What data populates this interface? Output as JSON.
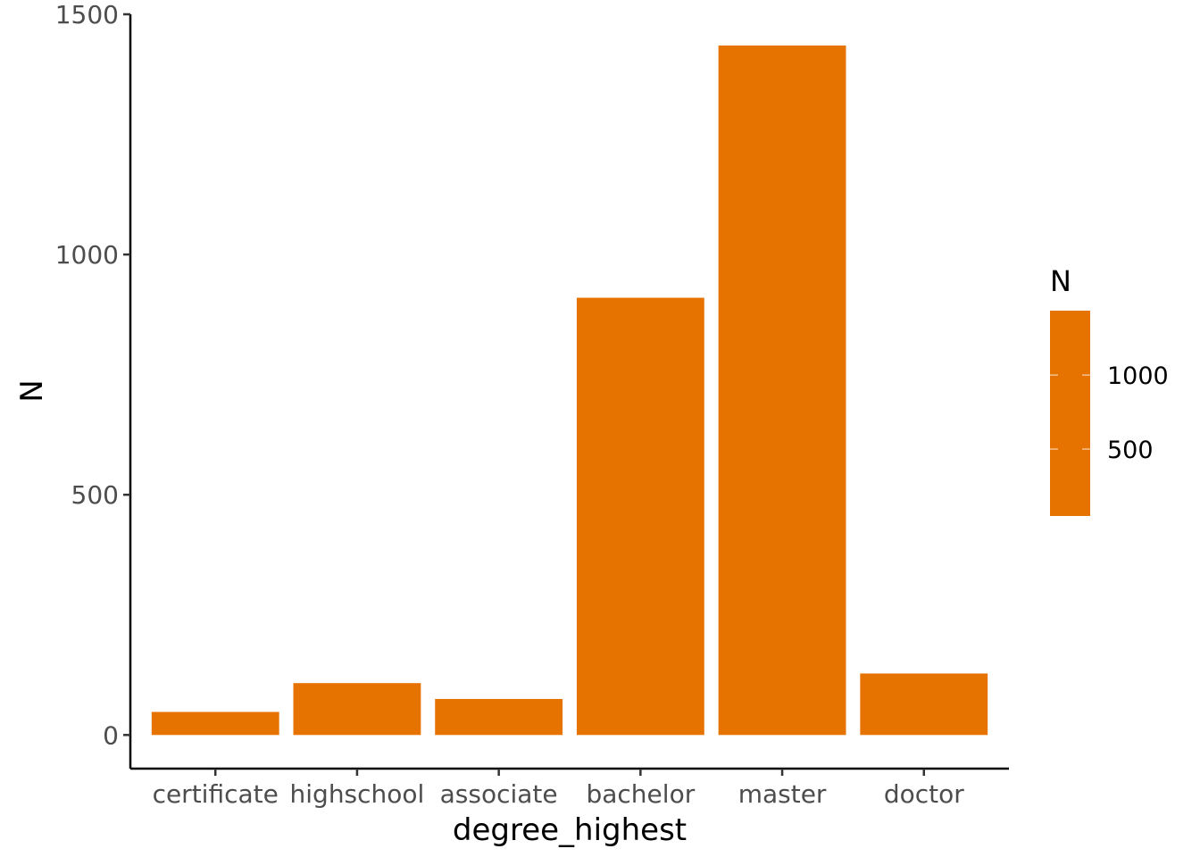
{
  "chart_data": {
    "type": "bar",
    "categories": [
      "certificate",
      "highschool",
      "associate",
      "bachelor",
      "master",
      "doctor"
    ],
    "values": [
      48,
      108,
      75,
      910,
      1435,
      128
    ],
    "xlabel": "degree_highest",
    "ylabel": "N",
    "ylim": [
      -70,
      1500
    ],
    "yticks": [
      0,
      500,
      1000,
      1500
    ],
    "grid": false,
    "bar_color": "#E67300",
    "legend": {
      "title": "N",
      "type": "colorbar",
      "position": "right",
      "breaks": [
        1000,
        500
      ],
      "range": [
        48,
        1435
      ]
    }
  }
}
